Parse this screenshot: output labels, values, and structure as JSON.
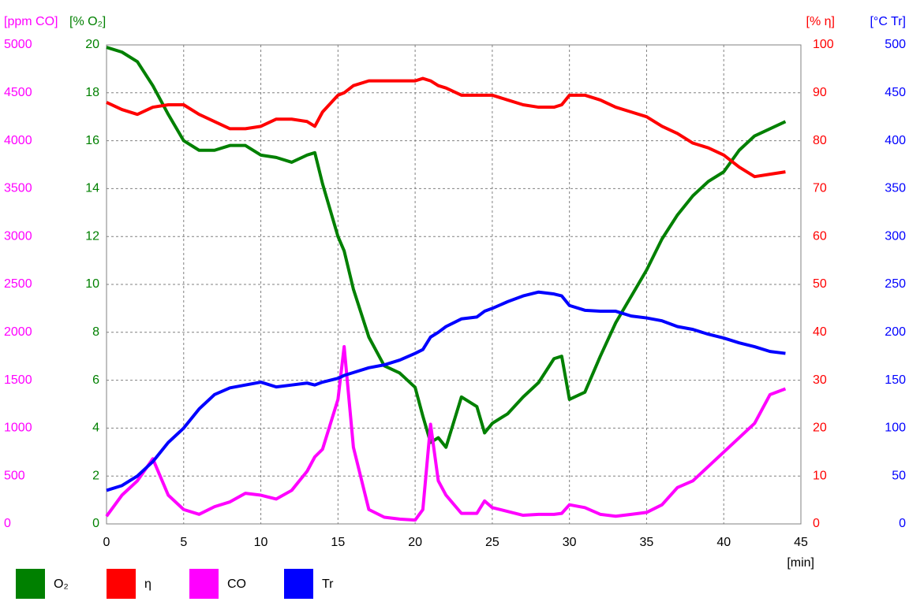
{
  "chart_data": {
    "type": "line",
    "x": [
      0,
      1,
      2,
      3,
      4,
      5,
      6,
      7,
      8,
      9,
      10,
      11,
      12,
      13,
      13.5,
      14,
      15,
      15.4,
      16,
      17,
      18,
      19,
      20,
      20.5,
      21,
      21.5,
      22,
      23,
      24,
      24.5,
      25,
      26,
      27,
      28,
      29,
      29.5,
      30,
      31,
      32,
      33,
      34,
      35,
      36,
      37,
      38,
      39,
      40,
      41,
      42,
      43,
      44
    ],
    "xlim": [
      0,
      45
    ],
    "xticks": [
      0,
      5,
      10,
      15,
      20,
      25,
      30,
      35,
      40,
      45
    ],
    "xlabel": "[min]",
    "grid": true,
    "legend": "bottom",
    "series": [
      {
        "name": "O₂",
        "color": "#008000",
        "axis": "left",
        "ylabel": "[% O₂]",
        "ylim": [
          0,
          20
        ],
        "yticks": [
          0,
          2,
          4,
          6,
          8,
          10,
          12,
          14,
          16,
          18,
          20
        ],
        "values": [
          19.9,
          19.7,
          19.3,
          18.3,
          17.1,
          16.0,
          15.6,
          15.6,
          15.8,
          15.8,
          15.4,
          15.3,
          15.1,
          15.4,
          15.5,
          14.2,
          12.0,
          11.4,
          9.8,
          7.8,
          6.6,
          6.3,
          5.7,
          4.5,
          3.4,
          3.6,
          3.2,
          5.3,
          4.9,
          3.8,
          4.2,
          4.6,
          5.3,
          5.9,
          6.9,
          7.0,
          5.2,
          5.5,
          7.0,
          8.4,
          9.5,
          10.6,
          11.9,
          12.9,
          13.7,
          14.3,
          14.7,
          15.6,
          16.2,
          16.5,
          16.8
        ]
      },
      {
        "name": "η",
        "color": "#ff0000",
        "axis": "right",
        "ylabel": "[% η]",
        "ylim": [
          0,
          100
        ],
        "yticks": [
          0,
          10,
          20,
          30,
          40,
          50,
          60,
          70,
          80,
          90,
          100
        ],
        "values": [
          88,
          86.5,
          85.5,
          87,
          87.5,
          87.5,
          85.5,
          84,
          82.5,
          82.5,
          83,
          84.5,
          84.5,
          84,
          83,
          86,
          89.5,
          90,
          91.5,
          92.5,
          92.5,
          92.5,
          92.5,
          93,
          92.5,
          91.5,
          91,
          89.5,
          89.5,
          89.5,
          89.5,
          88.5,
          87.5,
          87,
          87,
          87.5,
          89.5,
          89.5,
          88.5,
          87,
          86,
          85,
          83,
          81.5,
          79.5,
          78.5,
          77,
          74.5,
          72.5,
          73,
          73.5
        ]
      },
      {
        "name": "CO",
        "color": "#ff00ff",
        "axis": "left-outer",
        "ylabel": "[ppm CO]",
        "ylim": [
          0,
          5000
        ],
        "yticks": [
          0,
          500,
          1000,
          1500,
          2000,
          2500,
          3000,
          3500,
          4000,
          4500,
          5000
        ],
        "values": [
          80,
          300,
          450,
          680,
          300,
          150,
          100,
          180,
          230,
          320,
          300,
          260,
          350,
          550,
          700,
          780,
          1300,
          1850,
          800,
          150,
          70,
          50,
          40,
          150,
          1040,
          450,
          300,
          110,
          110,
          240,
          170,
          130,
          90,
          100,
          100,
          110,
          200,
          170,
          100,
          80,
          100,
          120,
          200,
          380,
          450,
          600,
          750,
          900,
          1050,
          1350,
          1410
        ]
      },
      {
        "name": "Tr",
        "color": "#0000ff",
        "axis": "right-outer",
        "ylabel": "[°C Tr]",
        "ylim": [
          0,
          500
        ],
        "yticks": [
          0,
          50,
          100,
          150,
          200,
          250,
          300,
          350,
          400,
          450,
          500
        ],
        "values": [
          35,
          40,
          50,
          65,
          85,
          100,
          120,
          135,
          142,
          145,
          148,
          143,
          145,
          147,
          145,
          148,
          152,
          155,
          158,
          163,
          166,
          171,
          178,
          182,
          195,
          200,
          206,
          214,
          216,
          222,
          225,
          232,
          238,
          242,
          240,
          238,
          228,
          223,
          222,
          222,
          217,
          215,
          212,
          206,
          203,
          198,
          194,
          189,
          185,
          180,
          178
        ]
      }
    ]
  }
}
